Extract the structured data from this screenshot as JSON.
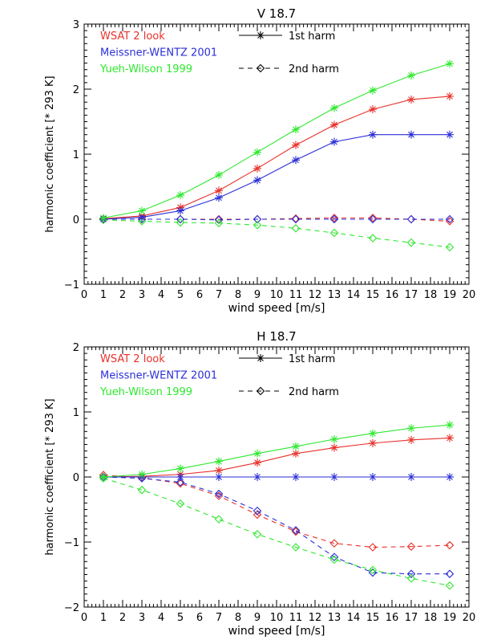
{
  "chart_data": [
    {
      "type": "line",
      "title": "V 18.7",
      "xlabel": "wind speed [m/s]",
      "ylabel": "harmonic coefficient [* 293 K]",
      "xlim": [
        0,
        20
      ],
      "ylim": [
        -1,
        3
      ],
      "x_ticks": [
        0,
        1,
        2,
        3,
        4,
        5,
        6,
        7,
        8,
        9,
        10,
        11,
        12,
        13,
        14,
        15,
        16,
        17,
        18,
        19,
        20
      ],
      "y_ticks": [
        -1,
        0,
        1,
        2,
        3
      ],
      "x": [
        1,
        3,
        5,
        7,
        9,
        11,
        13,
        15,
        17,
        19
      ],
      "legend": {
        "models": [
          {
            "name": "WSAT 2 look",
            "color": "#e8302a"
          },
          {
            "name": "Meissner-WENTZ 2001",
            "color": "#2b2fd6"
          },
          {
            "name": "Yueh-Wilson 1999",
            "color": "#2ee82e"
          }
        ],
        "harmonics": [
          {
            "name": "1st harm",
            "style": "solid",
            "marker": "asterisk"
          },
          {
            "name": "2nd harm",
            "style": "dashed",
            "marker": "diamond"
          }
        ]
      },
      "series": [
        {
          "name": "WSAT 2 look",
          "harmonic": "1st harm",
          "color": "#e8302a",
          "values": [
            0.01,
            0.05,
            0.18,
            0.44,
            0.78,
            1.14,
            1.45,
            1.69,
            1.84,
            1.89
          ]
        },
        {
          "name": "Meissner-WENTZ 2001",
          "harmonic": "1st harm",
          "color": "#2b2fd6",
          "values": [
            0.0,
            0.03,
            0.13,
            0.33,
            0.6,
            0.91,
            1.19,
            1.3,
            1.3,
            1.3
          ]
        },
        {
          "name": "Yueh-Wilson 1999",
          "harmonic": "1st harm",
          "color": "#2ee82e",
          "values": [
            0.02,
            0.13,
            0.37,
            0.68,
            1.03,
            1.38,
            1.71,
            1.98,
            2.21,
            2.39
          ]
        },
        {
          "name": "WSAT 2 look",
          "harmonic": "2nd harm",
          "color": "#e8302a",
          "values": [
            0.0,
            0.0,
            0.0,
            0.0,
            0.0,
            0.01,
            0.02,
            0.02,
            0.0,
            -0.03
          ]
        },
        {
          "name": "Meissner-WENTZ 2001",
          "harmonic": "2nd harm",
          "color": "#2b2fd6",
          "values": [
            0.0,
            0.0,
            0.0,
            -0.01,
            0.0,
            0.0,
            0.0,
            0.0,
            0.0,
            0.0
          ]
        },
        {
          "name": "Yueh-Wilson 1999",
          "harmonic": "2nd harm",
          "color": "#2ee82e",
          "values": [
            -0.01,
            -0.03,
            -0.05,
            -0.06,
            -0.09,
            -0.14,
            -0.21,
            -0.29,
            -0.36,
            -0.43
          ]
        }
      ]
    },
    {
      "type": "line",
      "title": "H 18.7",
      "xlabel": "wind speed [m/s]",
      "ylabel": "harmonic coefficient [* 293 K]",
      "xlim": [
        0,
        20
      ],
      "ylim": [
        -2,
        2
      ],
      "x_ticks": [
        0,
        1,
        2,
        3,
        4,
        5,
        6,
        7,
        8,
        9,
        10,
        11,
        12,
        13,
        14,
        15,
        16,
        17,
        18,
        19,
        20
      ],
      "y_ticks": [
        -2,
        -1,
        0,
        1,
        2
      ],
      "x": [
        1,
        3,
        5,
        7,
        9,
        11,
        13,
        15,
        17,
        19
      ],
      "legend": {
        "models": [
          {
            "name": "WSAT 2 look",
            "color": "#e8302a"
          },
          {
            "name": "Meissner-WENTZ 2001",
            "color": "#2b2fd6"
          },
          {
            "name": "Yueh-Wilson 1999",
            "color": "#2ee82e"
          }
        ],
        "harmonics": [
          {
            "name": "1st harm",
            "style": "solid",
            "marker": "asterisk"
          },
          {
            "name": "2nd harm",
            "style": "dashed",
            "marker": "diamond"
          }
        ]
      },
      "series": [
        {
          "name": "WSAT 2 look",
          "harmonic": "1st harm",
          "color": "#e8302a",
          "values": [
            0.0,
            0.01,
            0.04,
            0.1,
            0.22,
            0.36,
            0.45,
            0.52,
            0.57,
            0.6
          ]
        },
        {
          "name": "Meissner-WENTZ 2001",
          "harmonic": "1st harm",
          "color": "#2b2fd6",
          "values": [
            0.0,
            0.0,
            0.0,
            0.0,
            0.0,
            0.0,
            0.0,
            0.0,
            0.0,
            0.0
          ]
        },
        {
          "name": "Yueh-Wilson 1999",
          "harmonic": "1st harm",
          "color": "#2ee82e",
          "values": [
            0.0,
            0.04,
            0.13,
            0.24,
            0.36,
            0.47,
            0.58,
            0.67,
            0.75,
            0.8
          ]
        },
        {
          "name": "WSAT 2 look",
          "harmonic": "2nd harm",
          "color": "#e8302a",
          "values": [
            0.03,
            -0.01,
            -0.1,
            -0.29,
            -0.58,
            -0.84,
            -1.02,
            -1.08,
            -1.07,
            -1.05
          ]
        },
        {
          "name": "Meissner-WENTZ 2001",
          "harmonic": "2nd harm",
          "color": "#2b2fd6",
          "values": [
            0.0,
            -0.02,
            -0.08,
            -0.26,
            -0.52,
            -0.82,
            -1.23,
            -1.47,
            -1.49,
            -1.49
          ]
        },
        {
          "name": "Yueh-Wilson 1999",
          "harmonic": "2nd harm",
          "color": "#2ee82e",
          "values": [
            -0.02,
            -0.2,
            -0.41,
            -0.65,
            -0.88,
            -1.08,
            -1.27,
            -1.43,
            -1.56,
            -1.67
          ]
        }
      ]
    }
  ]
}
